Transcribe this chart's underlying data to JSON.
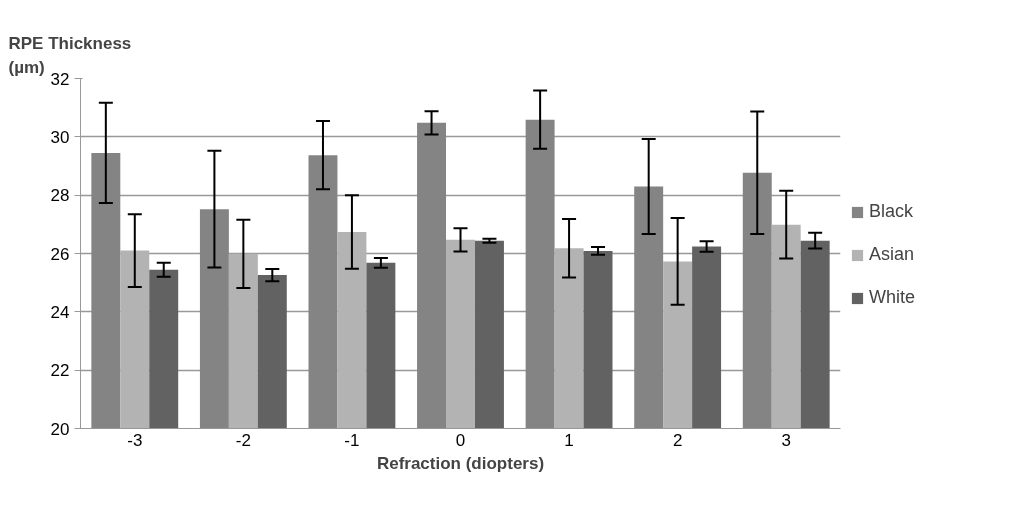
{
  "chart_data": {
    "type": "bar",
    "ylabel": "RPE Thickness (µm)",
    "xlabel": "Refraction (diopters)",
    "categories": [
      "-3",
      "-2",
      "-1",
      "0",
      "1",
      "2",
      "3"
    ],
    "series": [
      {
        "name": "Black",
        "color": "#848484",
        "values": [
          29.45,
          27.52,
          29.37,
          30.48,
          30.59,
          28.3,
          28.77
        ],
        "errors": [
          1.72,
          2.0,
          1.17,
          0.4,
          1.0,
          1.63,
          2.1
        ]
      },
      {
        "name": "Asian",
        "color": "#b3b3b3",
        "values": [
          26.1,
          25.99,
          26.74,
          26.47,
          26.18,
          25.73,
          26.99
        ],
        "errors": [
          1.25,
          1.17,
          1.26,
          0.4,
          1.0,
          1.49,
          1.16
        ]
      },
      {
        "name": "White",
        "color": "#626262",
        "values": [
          25.44,
          25.26,
          25.68,
          26.44,
          26.09,
          26.24,
          26.44
        ],
        "errors": [
          0.24,
          0.21,
          0.17,
          0.07,
          0.13,
          0.18,
          0.27
        ]
      }
    ],
    "ylim": [
      20,
      32
    ],
    "yticks": [
      20,
      22,
      24,
      26,
      28,
      30,
      32
    ],
    "grid": "y",
    "legend": "right"
  }
}
